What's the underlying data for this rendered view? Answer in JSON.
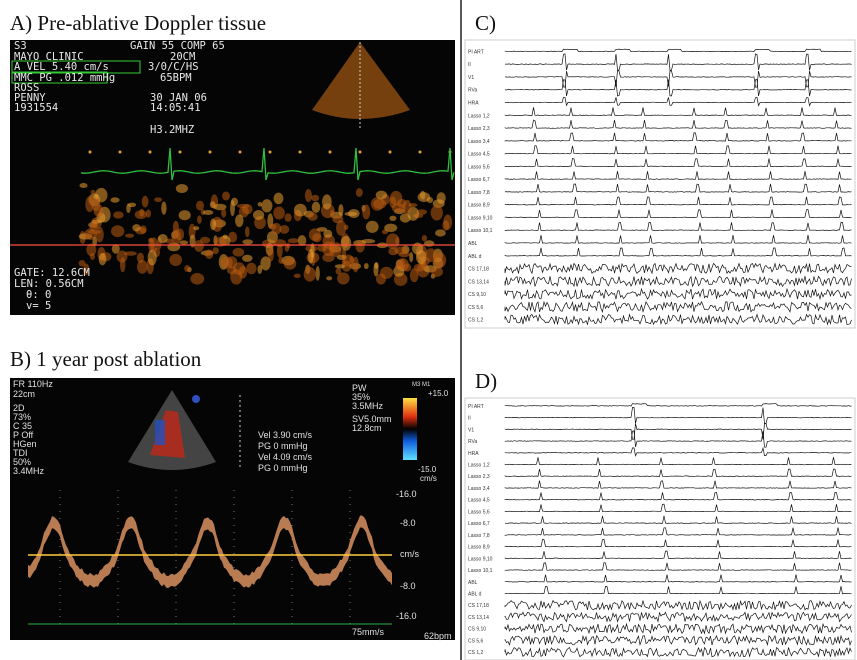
{
  "panels": [
    {
      "label": "A) Pre-ablative Doppler tissue",
      "overlay": [
        "S3",
        "GAIN 55 COMP 65",
        "MAYO CLINIC",
        "20CM",
        "A  VEL 5.40 cm/s",
        "3/0/C/HS",
        "MMC PG .012 mmHg",
        "65BPM",
        "ROSS",
        "PENNY",
        "30 JAN 06",
        "1931554",
        "14:05:41",
        "H3.2MHZ",
        "GATE: 12.6CM",
        "LEN: 0.56CM",
        "θ: 0",
        "v= 5"
      ]
    },
    {
      "label": "B) 1 year post ablation",
      "overlay": [
        "FR 110Hz",
        "22cm",
        "2D",
        "73%",
        "C 35",
        "P Off",
        "HGen",
        "TDI",
        "50%",
        "3.4MHz",
        "PW",
        "35%",
        "3.5MHz",
        "SV5.0mm",
        "12.8cm",
        "M3 M1",
        "+15.0",
        "-15.0",
        "cm/s",
        "Vel 3.90 cm/s",
        "PG   0 mmHg",
        "Vel 4.09 cm/s",
        "PG   0 mmHg",
        "-16.0",
        "-8.0",
        "cm/s",
        "-8.0",
        "-16.0",
        "75mm/s",
        "62bpm"
      ]
    },
    {
      "label": "C)"
    },
    {
      "label": "D)"
    }
  ],
  "ecg_channels": [
    "PI ART",
    "II",
    "V1",
    "RVa",
    "HRA",
    "Lasso 1,2",
    "Lasso 2,3",
    "Lasso 3,4",
    "Lasso 4,5",
    "Lasso 5,6",
    "Lasso 6,7",
    "Lasso 7,8",
    "Lasso 8,9",
    "Lasso 9,10",
    "Lasso 10,1",
    "ABL",
    "ABL d",
    "CS 17,18",
    "CS 13,14",
    "CS 9,10",
    "CS 5,6",
    "CS 1,2"
  ]
}
